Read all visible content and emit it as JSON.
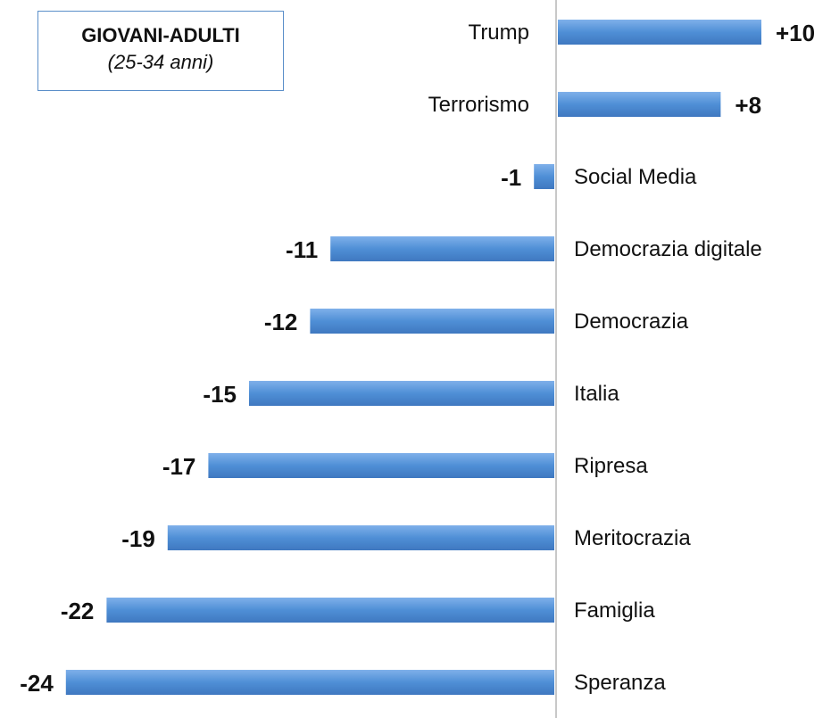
{
  "legend": {
    "title": "GIOVANI-ADULTI",
    "subtitle": "(25-34 anni)"
  },
  "chart_data": {
    "type": "bar",
    "orientation": "horizontal",
    "categories": [
      "Trump",
      "Terrorismo",
      "Social Media",
      "Democrazia digitale",
      "Democrazia",
      "Italia",
      "Ripresa",
      "Meritocrazia",
      "Famiglia",
      "Speranza"
    ],
    "values": [
      10,
      8,
      -1,
      -11,
      -12,
      -15,
      -17,
      -19,
      -22,
      -24
    ],
    "value_labels": [
      "+10",
      "+8",
      "-1",
      "-11",
      "-12",
      "-15",
      "-17",
      "-19",
      "-22",
      "-24"
    ],
    "xlim": [
      -24,
      10
    ],
    "bar_color": "#4f8fd6",
    "axis_color": "#c8c8c8",
    "grid": false,
    "legend_position": "top-left"
  }
}
